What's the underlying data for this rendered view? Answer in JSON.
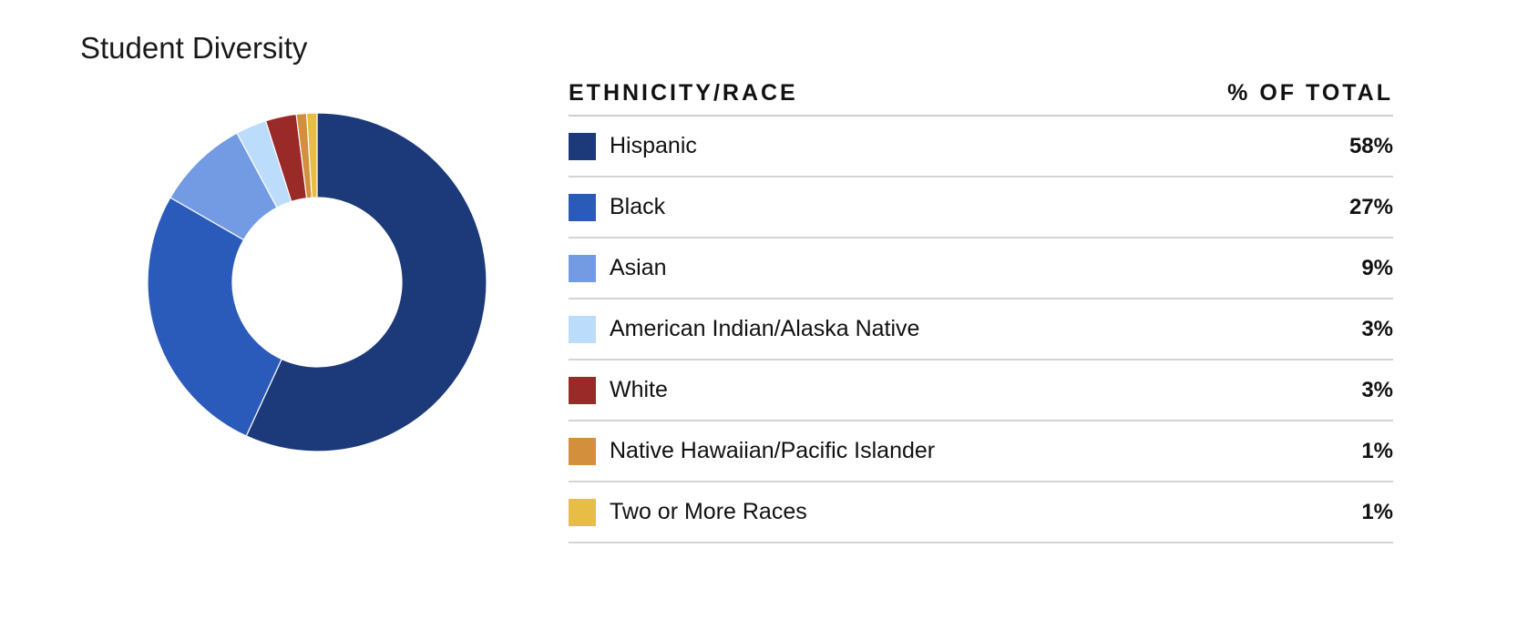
{
  "title": "Student Diversity",
  "table": {
    "col_label": "ETHNICITY/RACE",
    "col_value": "% OF TOTAL"
  },
  "chart_data": {
    "type": "pie",
    "style": "donut",
    "title": "Student Diversity",
    "slices": [
      {
        "label": "Hispanic",
        "value": 58,
        "display": "58%",
        "color": "#1c3a7a"
      },
      {
        "label": "Black",
        "value": 27,
        "display": "27%",
        "color": "#2b5bba"
      },
      {
        "label": "Asian",
        "value": 9,
        "display": "9%",
        "color": "#739be3"
      },
      {
        "label": "American Indian/Alaska Native",
        "value": 3,
        "display": "3%",
        "color": "#bcdcfb"
      },
      {
        "label": "White",
        "value": 3,
        "display": "3%",
        "color": "#9a2a28"
      },
      {
        "label": "Native Hawaiian/Pacific Islander",
        "value": 1,
        "display": "1%",
        "color": "#d38f3c"
      },
      {
        "label": "Two or More Races",
        "value": 1,
        "display": "1%",
        "color": "#e8bd45"
      }
    ]
  }
}
